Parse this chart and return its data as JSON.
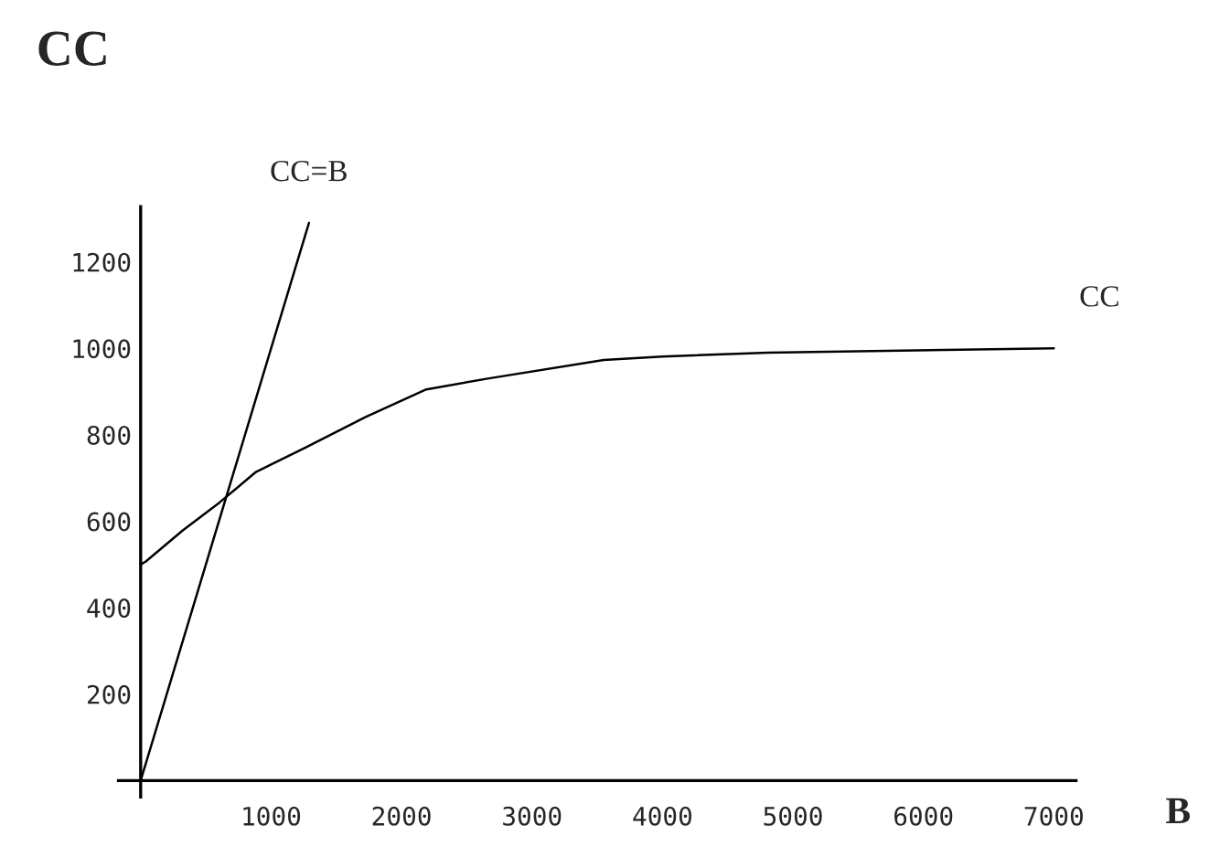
{
  "chart_data": {
    "type": "line",
    "xlabel": "B",
    "ylabel": "CC",
    "xlim": [
      -170,
      7170
    ],
    "ylim": [
      -38,
      1328
    ],
    "xticks": [
      1000,
      2000,
      3000,
      4000,
      5000,
      6000,
      7000
    ],
    "yticks": [
      200,
      400,
      600,
      800,
      1000,
      1200
    ],
    "grid": false,
    "legend": false,
    "marker": "none",
    "line_style": "solid",
    "series": [
      {
        "name": "CC=B",
        "color": "#000000",
        "x": [
          0,
          1290
        ],
        "values": [
          0,
          1290
        ]
      },
      {
        "name": "CC",
        "color": "#000000",
        "x": [
          0,
          40,
          323,
          603,
          884,
          1260,
          1725,
          2190,
          2660,
          3550,
          4000,
          4810,
          7000
        ],
        "values": [
          500,
          507,
          579,
          643,
          714,
          770,
          841,
          905,
          930,
          973,
          981,
          990,
          1000
        ]
      }
    ]
  }
}
